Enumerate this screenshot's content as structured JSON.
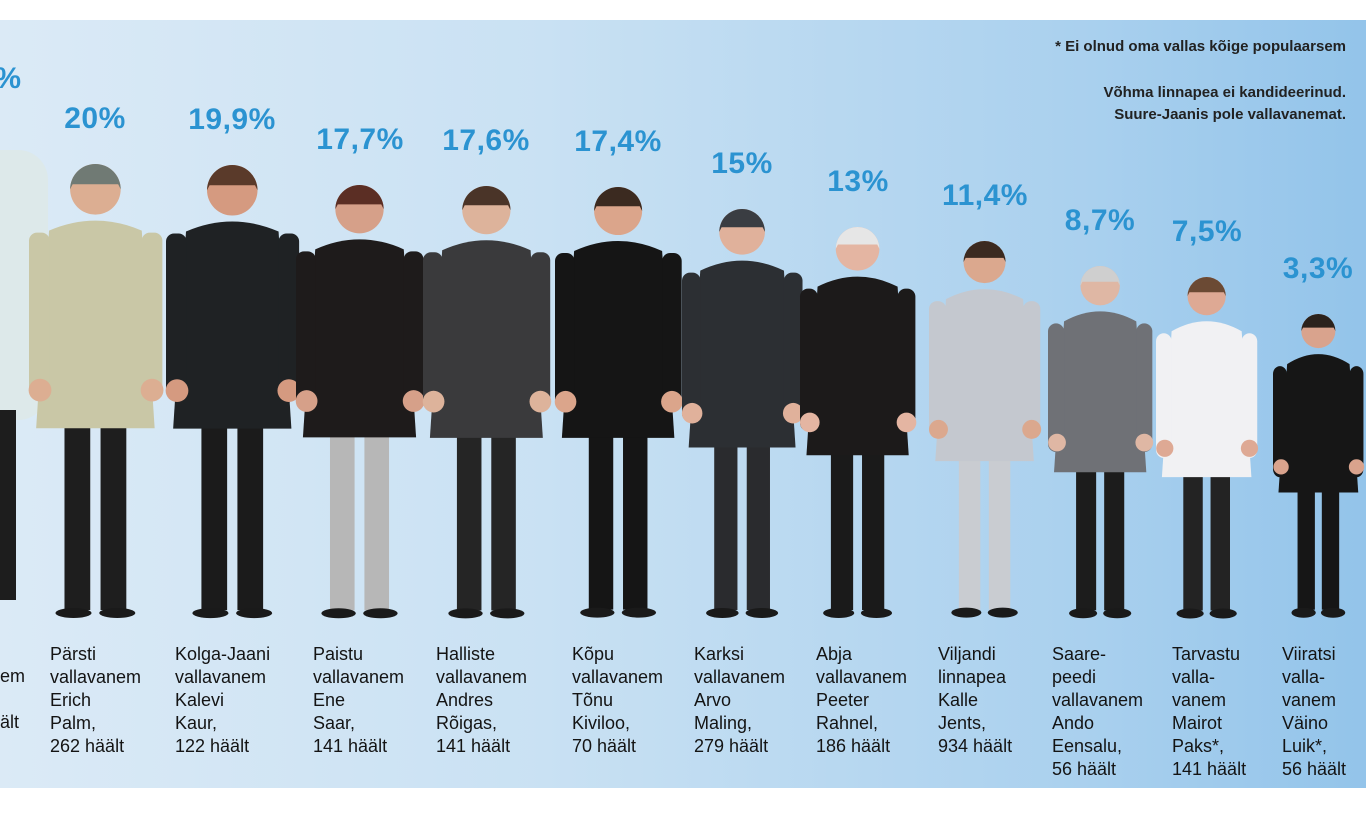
{
  "notes": {
    "asterisk": "* Ei olnud oma vallas kõige populaarsem",
    "line1": "Võhma linnapea ei kandideerinud.",
    "line2": "Suure-Jaanis pole vallavanemat."
  },
  "cropped": {
    "pct": "%",
    "caption": "em\n\nält"
  },
  "chart_data": {
    "type": "bar",
    "categories": [
      "Pärsti vallavanem Erich Palm, 262 häält",
      "Kolga-Jaani vallavanem Kalevi Kaur, 122 häält",
      "Paistu vallavanem Ene Saar, 141 häält",
      "Halliste vallavanem Andres Rõigas, 141 häält",
      "Kõpu vallavanem Tõnu Kiviloo, 70 häält",
      "Karksi vallavanem Arvo Maling, 279 häält",
      "Abja vallavanem Peeter Rahnel, 186 häält",
      "Viljandi linnapea Kalle Jents, 934 häält",
      "Saarepeedi vallavanem Ando Eensalu, 56 häält",
      "Tarvastu vallavanem Mairot Paks*, 141 häält",
      "Viiratsi vallavanem Väino Luik*, 56 häält"
    ],
    "values": [
      20,
      19.9,
      17.7,
      17.6,
      17.4,
      15,
      13,
      11.4,
      8.7,
      7.5,
      3.3
    ],
    "items": [
      {
        "pct": "20%",
        "caption": "Pärsti\nvallavanem\nErich\nPalm,\n262 häält",
        "coat": "#c9c7a6",
        "pants": "#1e1e1e",
        "skin": "#dcae92",
        "hair": "#707a74"
      },
      {
        "pct": "19,9%",
        "caption": "Kolga-Jaani\nvallavanem\nKalevi\nKaur,\n122 häält",
        "coat": "#1f2224",
        "pants": "#1b1b1b",
        "skin": "#d59a80",
        "hair": "#5a3a2a"
      },
      {
        "pct": "17,7%",
        "caption": "Paistu\nvallavanem\nEne\nSaar,\n141 häält",
        "coat": "#1e1b1b",
        "pants": "#b7b7b7",
        "skin": "#d6a089",
        "hair": "#5b2e24"
      },
      {
        "pct": "17,6%",
        "caption": "Halliste\nvallavanem\nAndres\nRõigas,\n141 häält",
        "coat": "#3a3a3c",
        "pants": "#252525",
        "skin": "#ddb39b",
        "hair": "#4a3428"
      },
      {
        "pct": "17,4%",
        "caption": "Kõpu\nvallavanem\nTõnu\nKiviloo,\n70 häält",
        "coat": "#151515",
        "pants": "#151515",
        "skin": "#dba58b",
        "hair": "#3b2a20"
      },
      {
        "pct": "15%",
        "caption": "Karksi\nvallavanem\nArvo\nMaling,\n279 häält",
        "coat": "#2c2f33",
        "pants": "#2a2b2e",
        "skin": "#e0b19b",
        "hair": "#3a3d42"
      },
      {
        "pct": "13%",
        "caption": "Abja\nvallavanem\nPeeter\nRahnel,\n186 häält",
        "coat": "#1c1a1a",
        "pants": "#1a1a1a",
        "skin": "#e4b5a2",
        "hair": "#e6e6e6"
      },
      {
        "pct": "11,4%",
        "caption": "Viljandi\nlinnapea\nKalle\nJents,\n934 häält",
        "coat": "#c4c8cf",
        "pants": "#c9ccd1",
        "skin": "#dba88e",
        "hair": "#3b2a20"
      },
      {
        "pct": "8,7%",
        "caption": "Saare-\npeedi\nvallavanem\nAndo\nEensalu,\n56 häält",
        "coat": "#6f7176",
        "pants": "#1c1c1c",
        "skin": "#dfb7a4",
        "hair": "#cfcfcf"
      },
      {
        "pct": "7,5%",
        "caption": "Tarvastu\nvalla-\nvanem\nMairot\nPaks*,\n141 häält",
        "coat": "#f1f1f3",
        "pants": "#232323",
        "skin": "#dea994",
        "hair": "#6b4a34"
      },
      {
        "pct": "3,3%",
        "caption": "Viiratsi\nvalla-\nvanem\nVäino\nLuik*,\n56 häält",
        "coat": "#161616",
        "pants": "#161616",
        "skin": "#d9a38d",
        "hair": "#2b221c"
      }
    ]
  }
}
